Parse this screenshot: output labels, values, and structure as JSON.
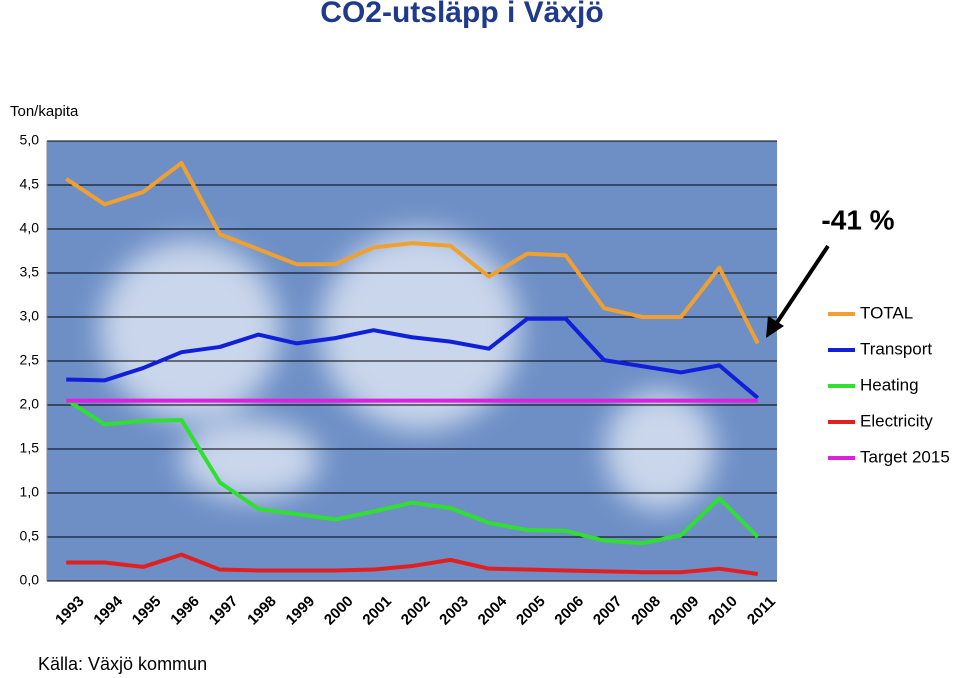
{
  "chart_data": {
    "type": "line",
    "title": "CO2-utsläpp i Växjö",
    "y_label": "Ton/kapita",
    "annotation": "-41 %",
    "source": "Källa: Växjö kommun",
    "categories": [
      "1993",
      "1994",
      "1995",
      "1996",
      "1997",
      "1998",
      "1999",
      "2000",
      "2001",
      "2002",
      "2003",
      "2004",
      "2005",
      "2006",
      "2007",
      "2008",
      "2009",
      "2010",
      "2011"
    ],
    "series": [
      {
        "name": "TOTAL",
        "color": "#f0a030",
        "values": [
          4.57,
          4.28,
          4.42,
          4.75,
          3.94,
          3.77,
          3.6,
          3.6,
          3.79,
          3.84,
          3.81,
          3.46,
          3.72,
          3.7,
          3.1,
          3.0,
          3.0,
          3.56,
          2.7
        ]
      },
      {
        "name": "Transport",
        "color": "#1020d8",
        "values": [
          2.29,
          2.28,
          2.42,
          2.6,
          2.66,
          2.8,
          2.7,
          2.76,
          2.85,
          2.77,
          2.72,
          2.64,
          2.98,
          2.98,
          2.51,
          2.44,
          2.37,
          2.45,
          2.08
        ]
      },
      {
        "name": "Heating",
        "color": "#30e030",
        "values": [
          2.06,
          1.78,
          1.82,
          1.83,
          1.12,
          0.82,
          0.76,
          0.7,
          0.79,
          0.89,
          0.83,
          0.66,
          0.58,
          0.57,
          0.46,
          0.43,
          0.52,
          0.94,
          0.5
        ]
      },
      {
        "name": "Electricity",
        "color": "#e02020",
        "values": [
          0.21,
          0.21,
          0.16,
          0.3,
          0.13,
          0.12,
          0.12,
          0.12,
          0.13,
          0.17,
          0.24,
          0.14,
          0.13,
          0.12,
          0.11,
          0.1,
          0.1,
          0.14,
          0.08
        ]
      },
      {
        "name": "Target 2015",
        "color": "#e020e0",
        "values": [
          2.05,
          2.05,
          2.05,
          2.05,
          2.05,
          2.05,
          2.05,
          2.05,
          2.05,
          2.05,
          2.05,
          2.05,
          2.05,
          2.05,
          2.05,
          2.05,
          2.05,
          2.05,
          2.05
        ]
      }
    ],
    "ylim": [
      0,
      5
    ],
    "yticks": [
      {
        "value": 0,
        "label": "0,0"
      },
      {
        "value": 0.5,
        "label": "0,5"
      },
      {
        "value": 1,
        "label": "1,0"
      },
      {
        "value": 1.5,
        "label": "1,5"
      },
      {
        "value": 2,
        "label": "2,0"
      },
      {
        "value": 2.5,
        "label": "2,5"
      },
      {
        "value": 3,
        "label": "3,0"
      },
      {
        "value": 3.5,
        "label": "3,5"
      },
      {
        "value": 4,
        "label": "4,0"
      },
      {
        "value": 4.5,
        "label": "4,5"
      },
      {
        "value": 5,
        "label": "5,0"
      }
    ],
    "grid": true,
    "legend": "right"
  }
}
